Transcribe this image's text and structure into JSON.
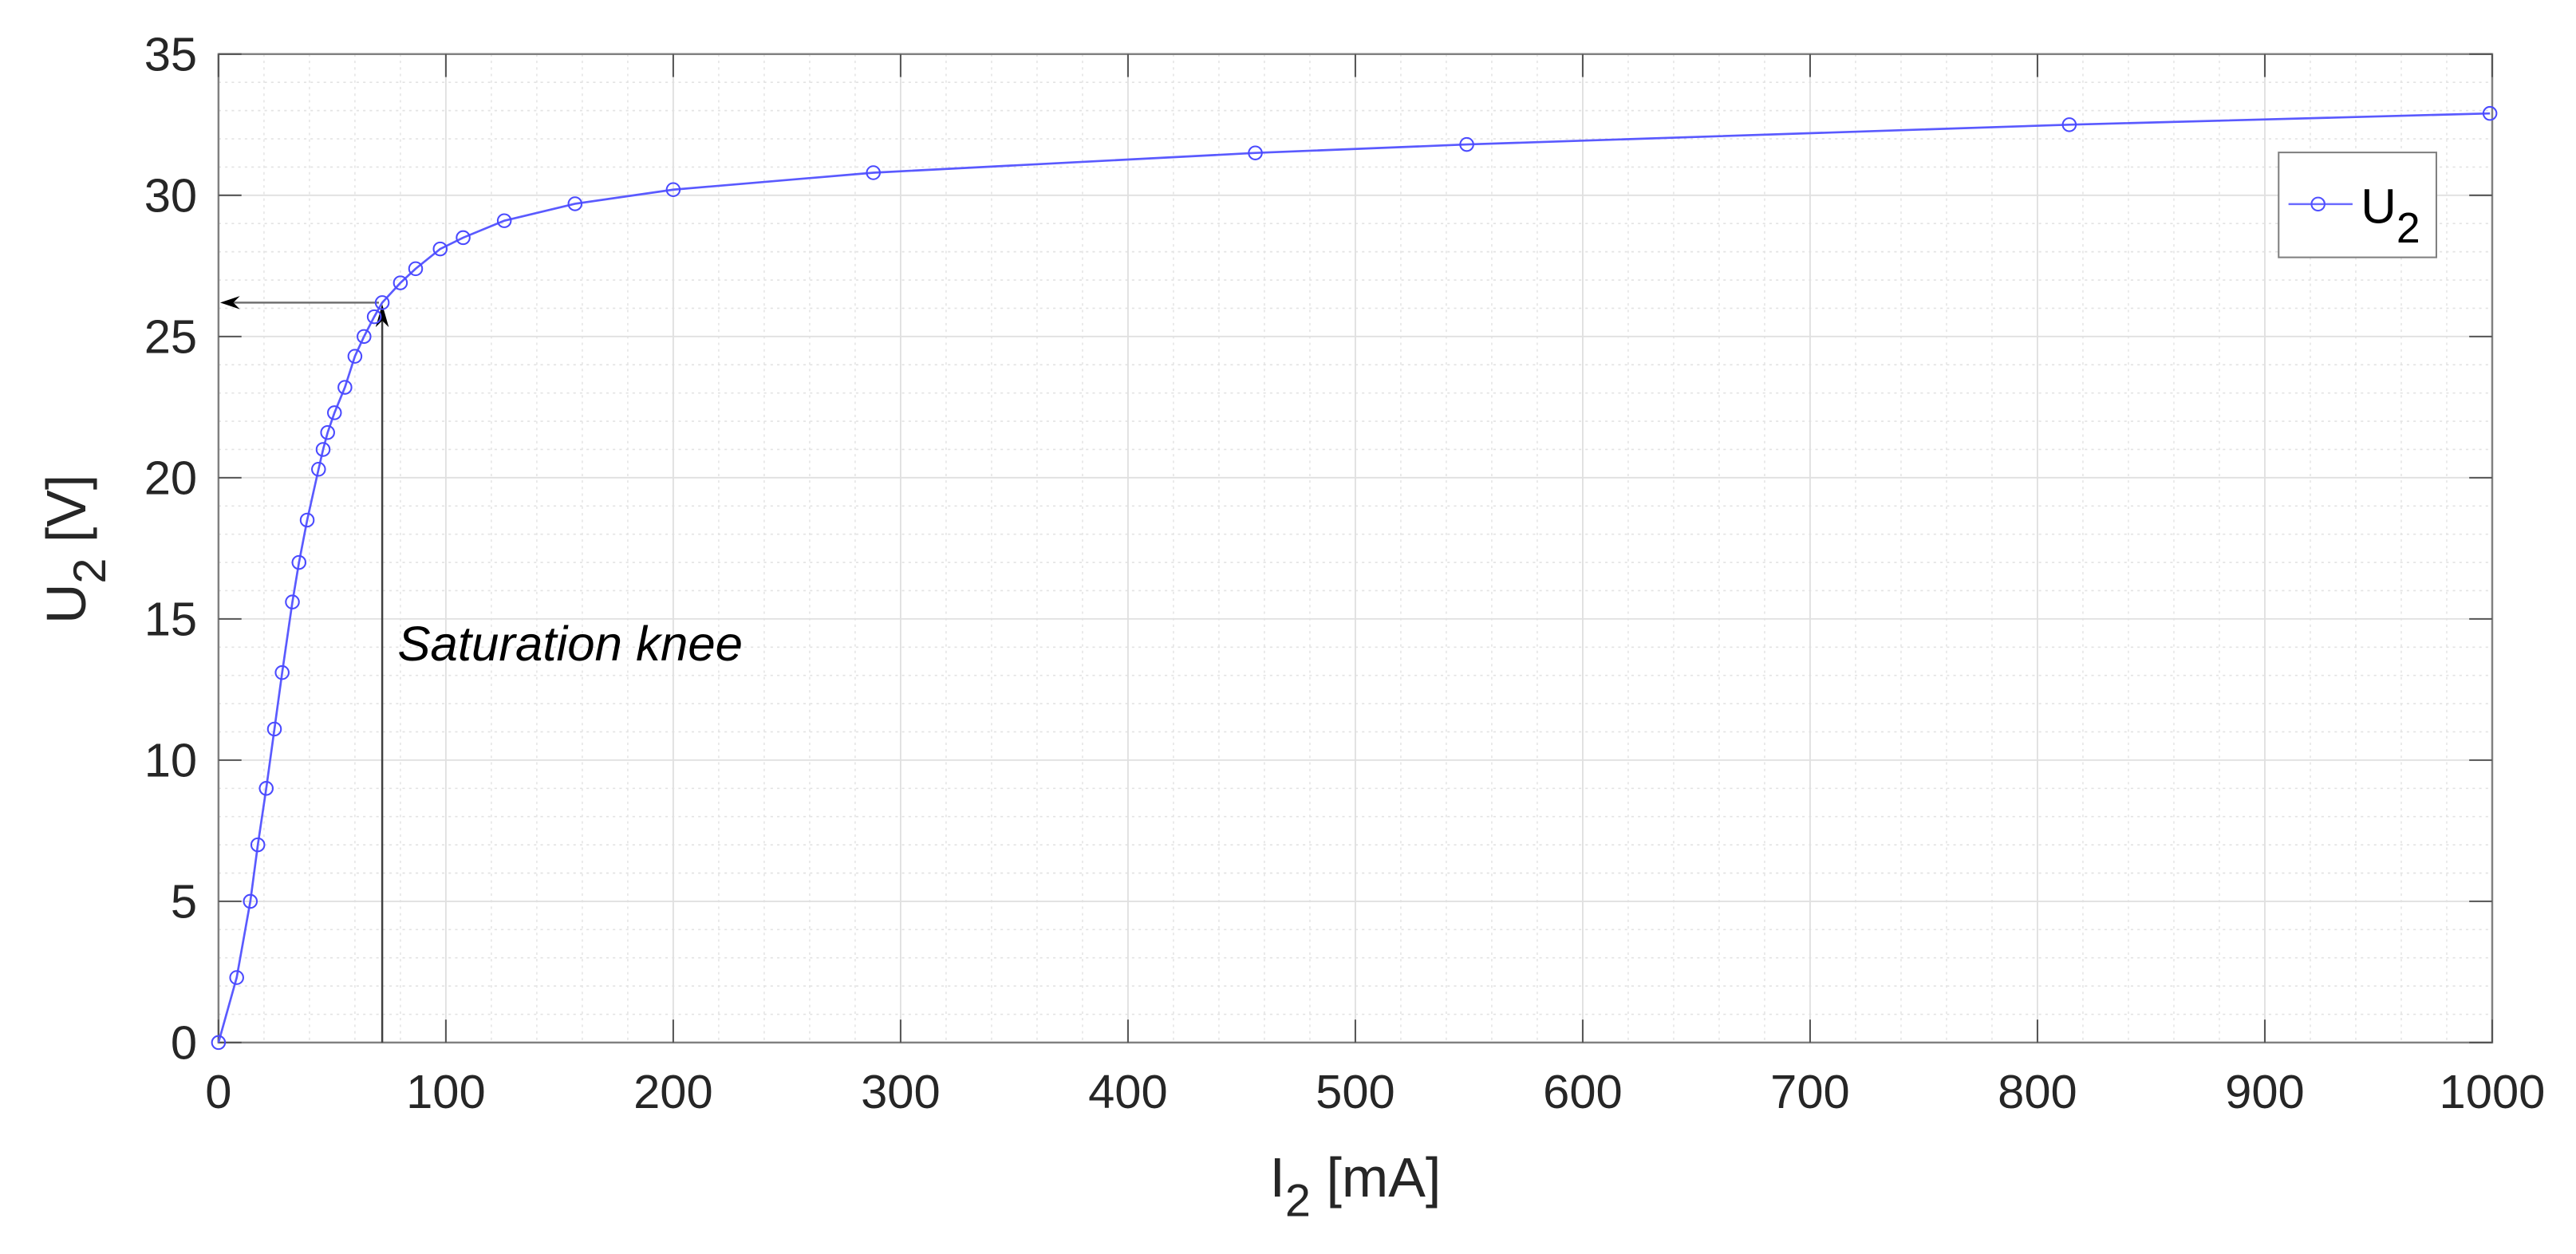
{
  "chart_data": {
    "type": "line",
    "title": "",
    "xlabel": "I_2 [mA]",
    "ylabel": "U_2 [V]",
    "xlim": [
      0,
      1000
    ],
    "ylim": [
      0,
      35
    ],
    "xticks": [
      0,
      100,
      200,
      300,
      400,
      500,
      600,
      700,
      800,
      900,
      1000
    ],
    "yticks": [
      0,
      5,
      10,
      15,
      20,
      25,
      30,
      35
    ],
    "grid": {
      "major": true,
      "minor": true
    },
    "legend": {
      "position": "upper right",
      "entries": [
        "U_2"
      ]
    },
    "series": [
      {
        "name": "U_2",
        "color": "#0000ff",
        "marker": "circle",
        "x": [
          0,
          8,
          14,
          17.3,
          21,
          24.6,
          28,
          32.5,
          35.4,
          39,
          44,
          46,
          48,
          51,
          55.6,
          60,
          64,
          68.5,
          72,
          80,
          86.7,
          97.5,
          107.6,
          125.7,
          156.8,
          200,
          288,
          456,
          549,
          814,
          999
        ],
        "y": [
          0,
          2.3,
          5.0,
          7.0,
          9.0,
          11.1,
          13.1,
          15.6,
          17.0,
          18.5,
          20.3,
          21.0,
          21.6,
          22.3,
          23.2,
          24.3,
          25.0,
          25.7,
          26.2,
          26.9,
          27.4,
          28.1,
          28.5,
          29.1,
          29.7,
          30.2,
          30.8,
          31.5,
          31.8,
          32.5,
          32.9
        ]
      }
    ],
    "annotations": [
      {
        "text": "Saturation knee",
        "x": 79,
        "y": 14,
        "style": "italic"
      },
      {
        "type": "arrow",
        "from": [
          72,
          0
        ],
        "to": [
          72,
          26.2
        ],
        "description": "vertical arrow up to knee point"
      },
      {
        "type": "arrow",
        "from": [
          72,
          26.2
        ],
        "to": [
          0,
          26.2
        ],
        "description": "horizontal arrow to y-axis"
      }
    ]
  },
  "labels": {
    "xlabel_main": "I",
    "xlabel_sub": "2",
    "xlabel_unit": " [mA]",
    "ylabel_main": "U",
    "ylabel_sub": "2",
    "ylabel_unit": " [V]",
    "annotation": "Saturation knee",
    "legend_main": "U",
    "legend_sub": "2"
  }
}
